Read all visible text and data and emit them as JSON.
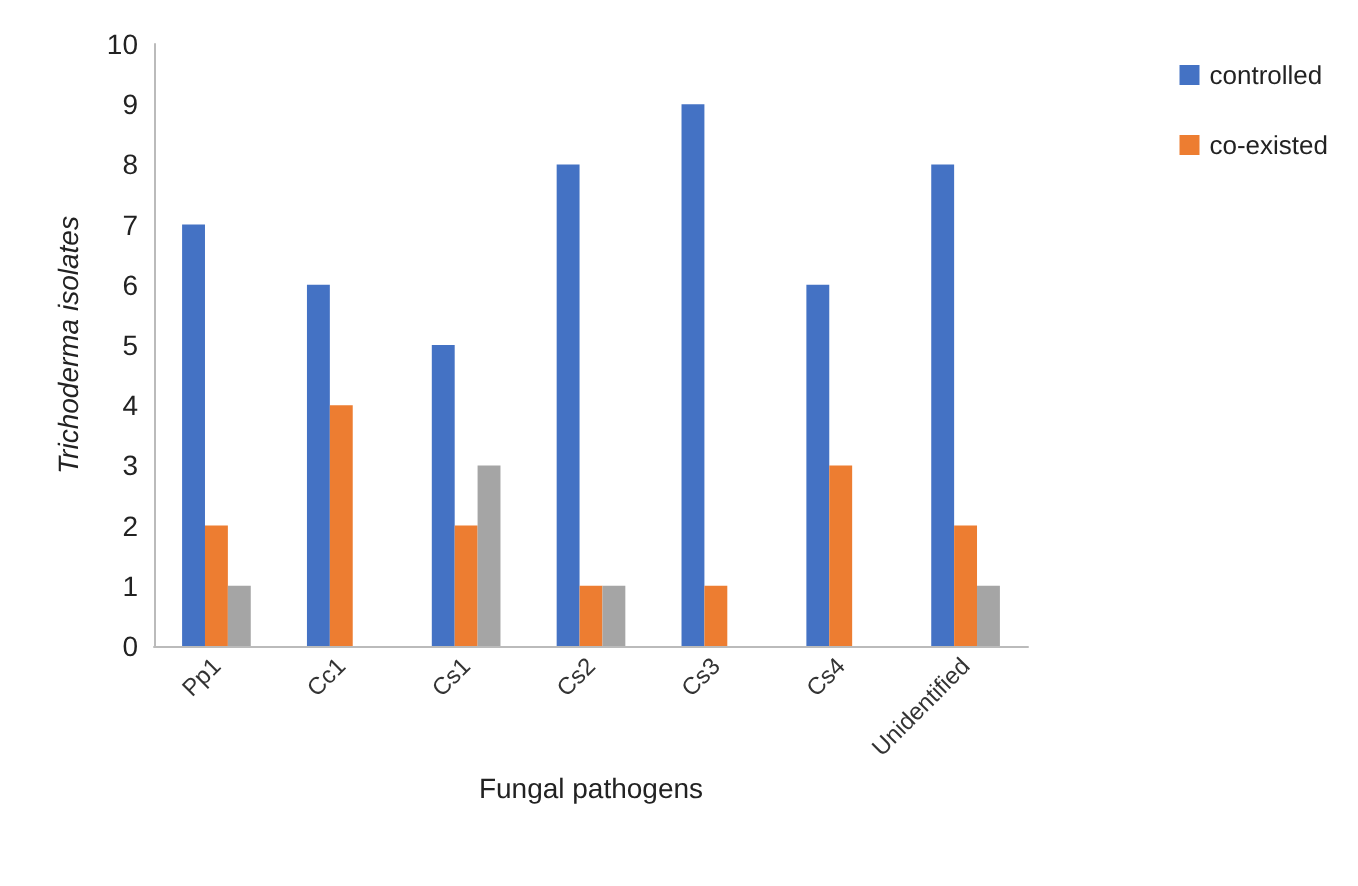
{
  "chart_data": {
    "type": "bar",
    "xlabel": "Fungal pathogens",
    "ylabel": "Trichoderma isolates",
    "categories": [
      "Pp1",
      "Cc1",
      "Cs1",
      "Cs2",
      "Cs3",
      "Cs4",
      "Unidentified"
    ],
    "series": [
      {
        "name": "controlled",
        "color": "#4472c4",
        "values": [
          7,
          6,
          5,
          8,
          9,
          6,
          8
        ]
      },
      {
        "name": "co-existed",
        "color": "#ed7d31",
        "values": [
          2,
          4,
          2,
          1,
          1,
          3,
          2
        ]
      },
      {
        "color": "#a5a5a5",
        "values": [
          1,
          0,
          3,
          1,
          0,
          0,
          1
        ]
      }
    ],
    "ylim": [
      0,
      10
    ],
    "yticks": [
      0,
      1,
      2,
      3,
      4,
      5,
      6,
      7,
      8,
      9,
      10
    ],
    "grid": false,
    "legend": "top right"
  }
}
